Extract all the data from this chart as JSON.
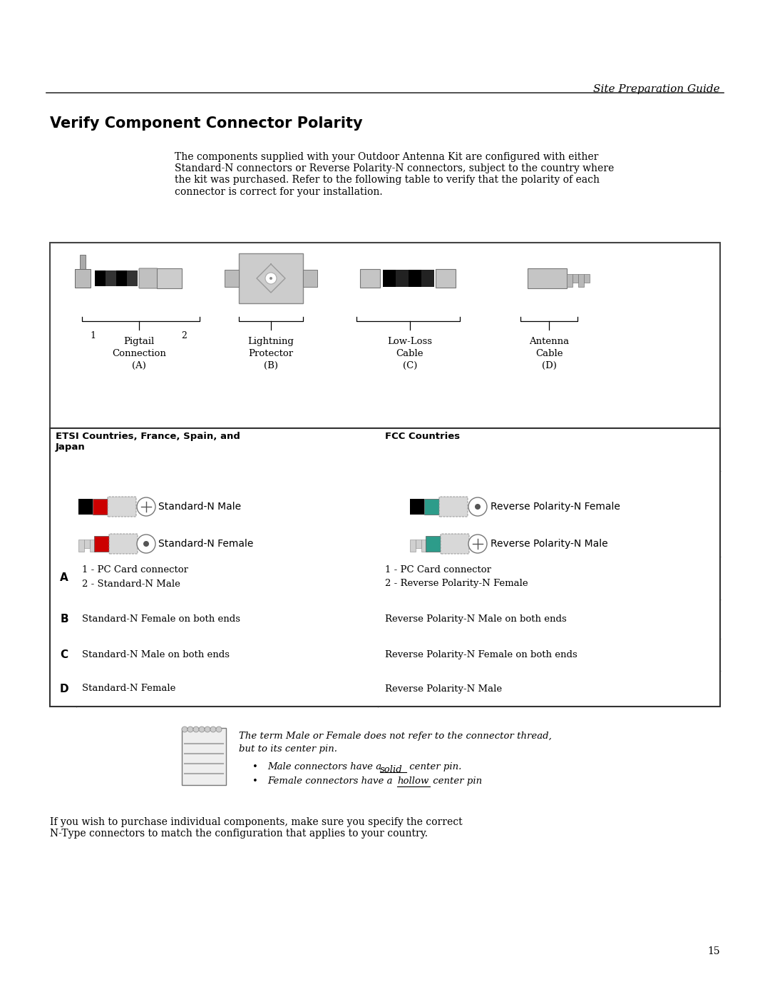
{
  "page_title": "Site Preparation Guide",
  "section_title": "Verify Component Connector Polarity",
  "intro_text": "The components supplied with your Outdoor Antenna Kit are configured with either\nStandard-N connectors or Reverse Polarity-N connectors, subject to the country where\nthe kit was purchased. Refer to the following table to verify that the polarity of each\nconnector is correct for your installation.",
  "table_col1_header": "ETSI Countries, France, Spain, and\nJapan",
  "table_col2_header": "FCC Countries",
  "etsi_row1": "Standard-N Male",
  "etsi_row2": "Standard-N Female",
  "fcc_row1": "Reverse Polarity-N Female",
  "fcc_row2": "Reverse Polarity-N Male",
  "table_rows": [
    {
      "label": "A",
      "etsi": "1 - PC Card connector\n2 - Standard-N Male",
      "fcc": "1 - PC Card connector\n2 - Reverse Polarity-N Female"
    },
    {
      "label": "B",
      "etsi": "Standard-N Female on both ends",
      "fcc": "Reverse Polarity-N Male on both ends"
    },
    {
      "label": "C",
      "etsi": "Standard-N Male on both ends",
      "fcc": "Reverse Polarity-N Female on both ends"
    },
    {
      "label": "D",
      "etsi": "Standard-N Female",
      "fcc": "Reverse Polarity-N Male"
    }
  ],
  "note_line1": "The term Male or Female does not refer to the connector thread,",
  "note_line2": "but to its center pin.",
  "note_bullet1a": "Male connectors have a ",
  "note_bullet1b": "solid",
  "note_bullet1c": " center pin.",
  "note_bullet2a": "Female connectors have a ",
  "note_bullet2b": "hollow",
  "note_bullet2c": " center pin",
  "closing_text": "If you wish to purchase individual components, make sure you specify the correct\nN-Type connectors to match the configuration that applies to your country.",
  "page_number": "15",
  "bg_color": "#ffffff",
  "red_color": "#cc0000",
  "teal_color": "#2d9c8a",
  "grey_conn": "#c8c8c8",
  "dark_grey": "#555555"
}
